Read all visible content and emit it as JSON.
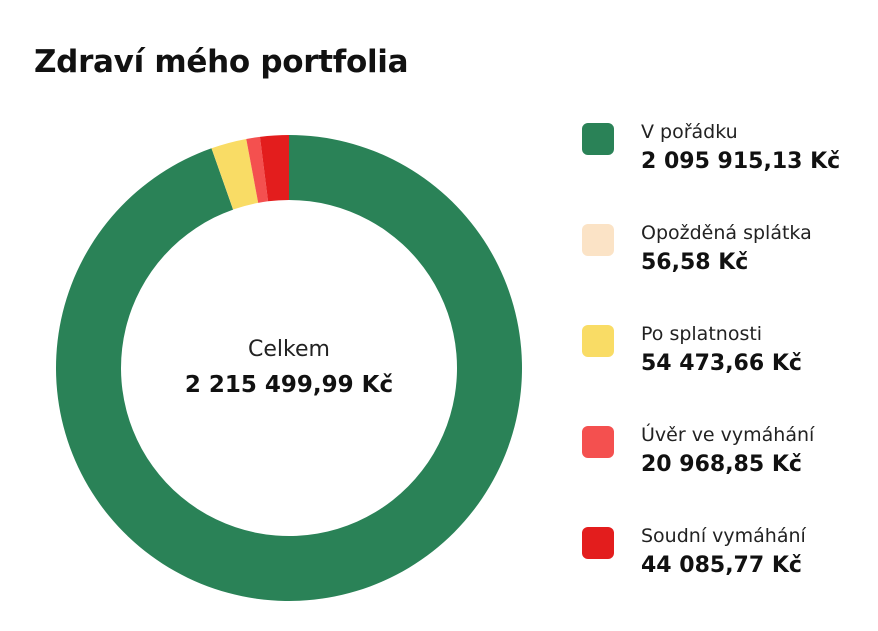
{
  "card": {
    "title": "Zdraví mého portfolia"
  },
  "center": {
    "label": "Celkem",
    "total": "2 215 499,99 Kč"
  },
  "legend": [
    {
      "label": "V pořádku",
      "value": "2 095 915,13 Kč",
      "color": "#2a8257"
    },
    {
      "label": "Opožděná splátka",
      "value": "56,58 Kč",
      "color": "#fbe3c6"
    },
    {
      "label": "Po splatnosti",
      "value": "54 473,66 Kč",
      "color": "#f9dc65"
    },
    {
      "label": "Úvěr ve vymáhání",
      "value": "20 968,85 Kč",
      "color": "#f4504f"
    },
    {
      "label": "Soudní vymáhání",
      "value": "44 085,77 Kč",
      "color": "#e31d1d"
    }
  ],
  "chart_data": {
    "type": "pie",
    "subtype": "donut",
    "title": "Zdraví mého portfolia",
    "center_label": "Celkem",
    "total": 2215499.99,
    "unit": "Kč",
    "legend_position": "right",
    "categories": [
      "V pořádku",
      "Opožděná splátka",
      "Po splatnosti",
      "Úvěr ve vymáhání",
      "Soudní vymáhání"
    ],
    "values": [
      2095915.13,
      56.58,
      54473.66,
      20968.85,
      44085.77
    ],
    "colors": [
      "#2a8257",
      "#fbe3c6",
      "#f9dc65",
      "#f4504f",
      "#e31d1d"
    ]
  }
}
